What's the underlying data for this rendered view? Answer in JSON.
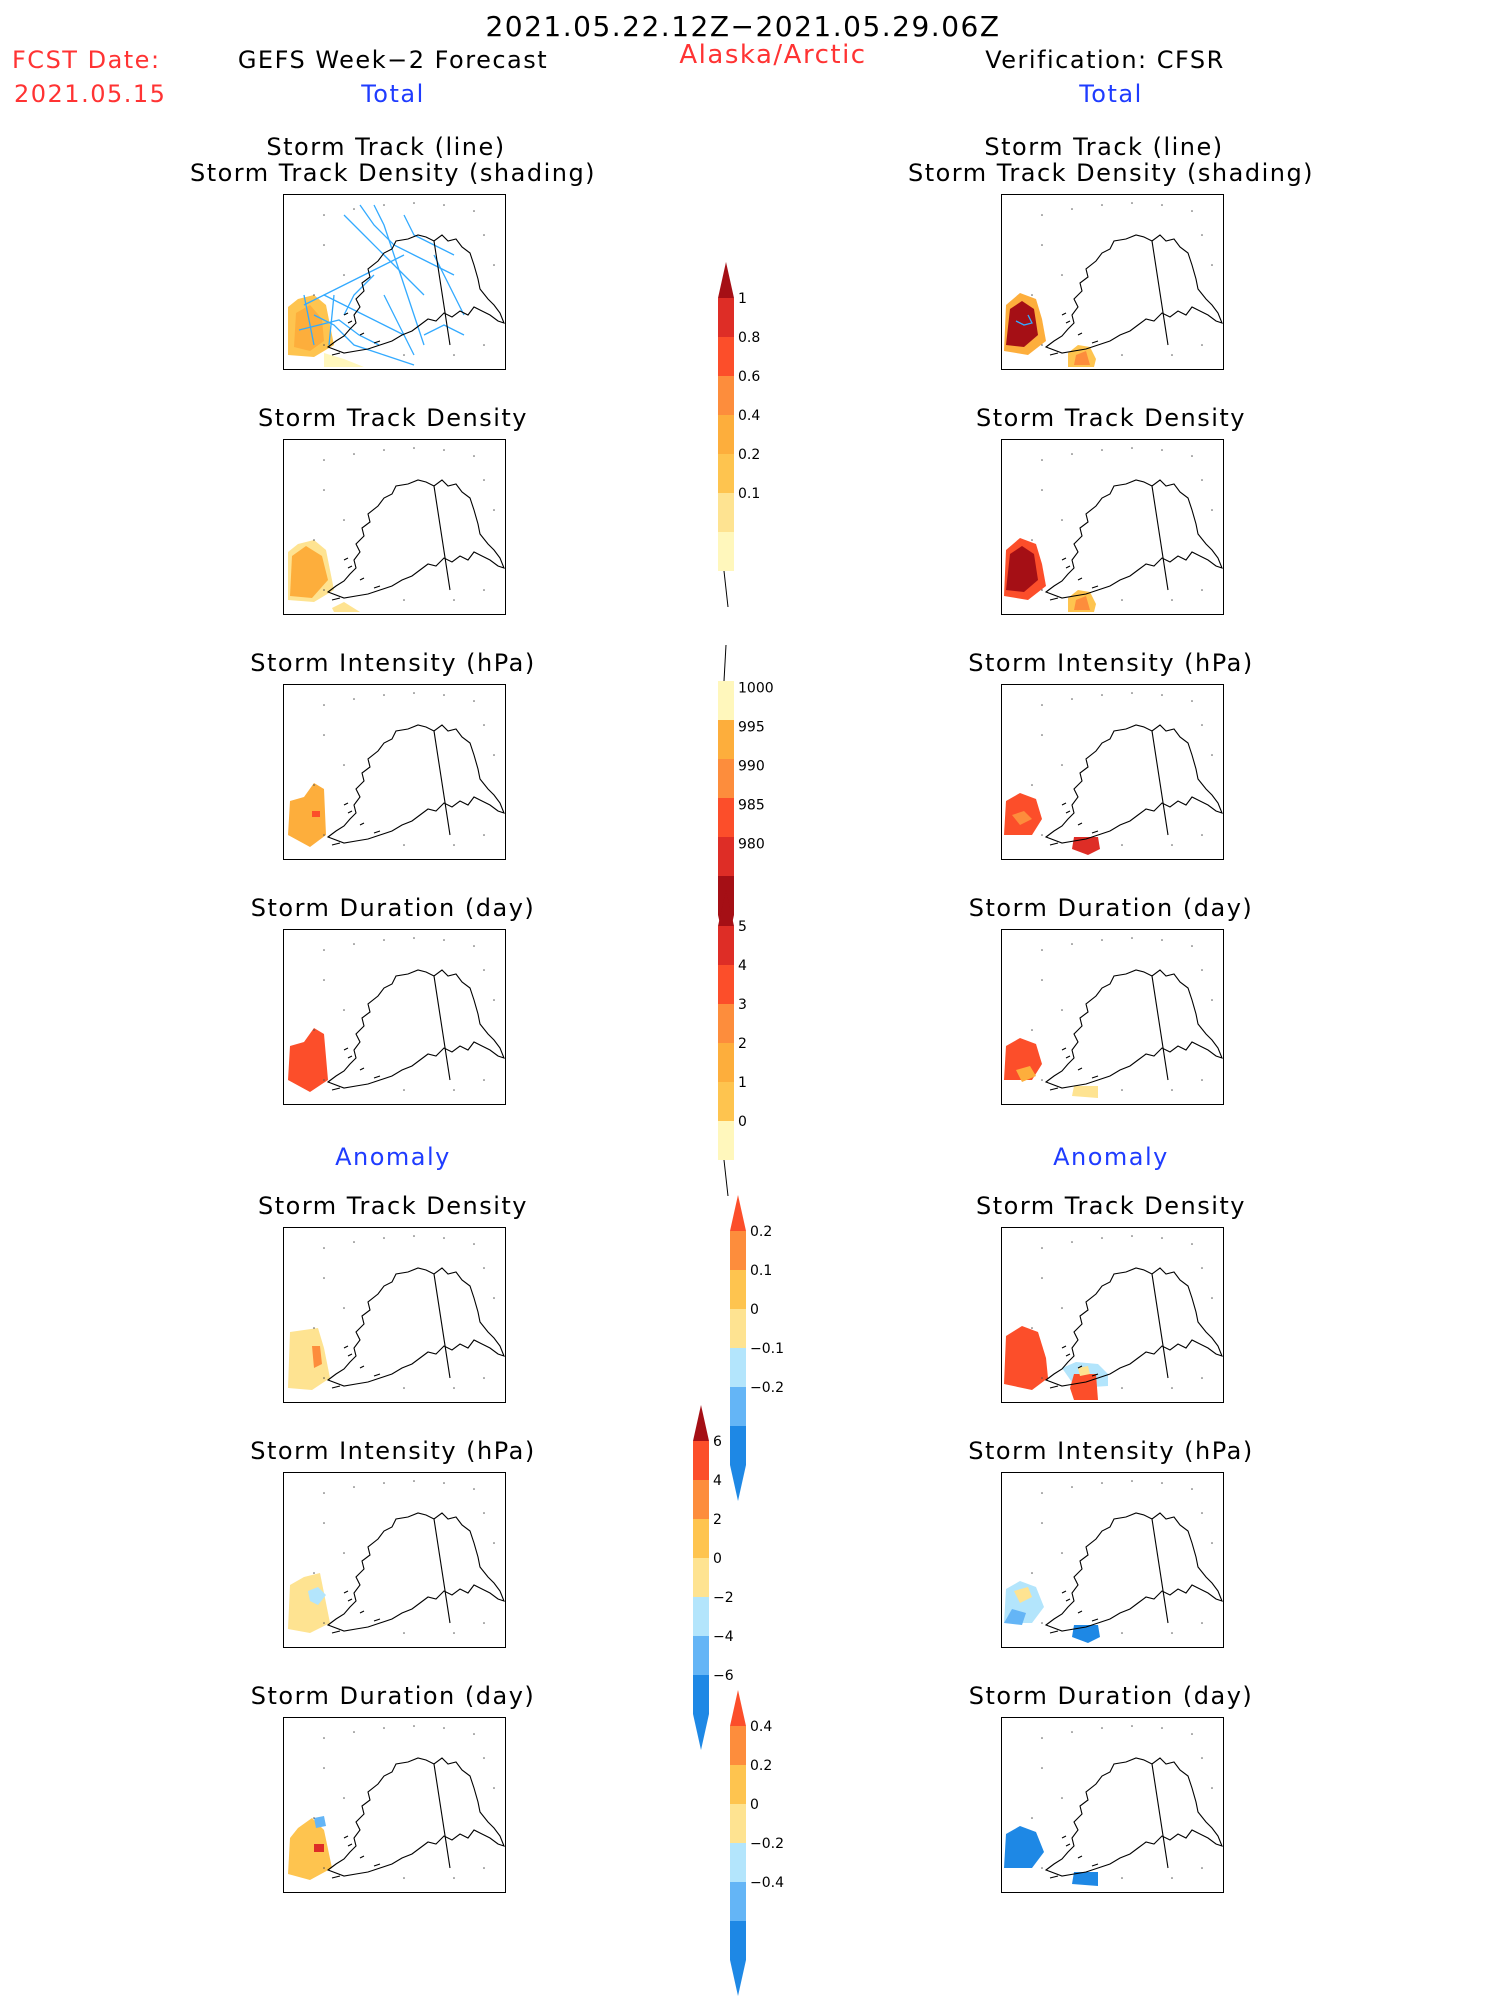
{
  "header": {
    "date_range": "2021.05.22.12Z−2021.05.29.06Z",
    "fcst_label": "FCST Date:",
    "fcst_date": "2021.05.15",
    "left_title": "GEFS Week−2 Forecast",
    "region": "Alaska/Arctic",
    "right_title": "Verification: CFSR",
    "total_left": "Total",
    "total_right": "Total",
    "anomaly_left": "Anomaly",
    "anomaly_right": "Anomaly"
  },
  "panels": {
    "track_line": "Storm Track (line)",
    "track_shading": "Storm Track Density (shading)",
    "density": "Storm Track Density",
    "intensity": "Storm Intensity (hPa)",
    "duration": "Storm Duration (day)"
  },
  "colorbars": {
    "density": [
      "1",
      "0.8",
      "0.6",
      "0.4",
      "0.2",
      "0.1"
    ],
    "intensity": [
      "1000",
      "995",
      "990",
      "985",
      "980"
    ],
    "duration": [
      "5",
      "4",
      "3",
      "2",
      "1",
      "0"
    ],
    "anom_density": [
      "0.2",
      "0.1",
      "0",
      "−0.1",
      "−0.2"
    ],
    "anom_intensity": [
      "6",
      "4",
      "2",
      "0",
      "−2",
      "−4",
      "−6"
    ],
    "anom_duration": [
      "0.4",
      "0.2",
      "0",
      "−0.2",
      "−0.4"
    ]
  },
  "colors": {
    "dark_red": "#a50f15",
    "red": "#de2d26",
    "orange_red": "#fc4e2a",
    "orange": "#fd8d3c",
    "amber": "#fdae3c",
    "light_orange": "#fec44f",
    "yellow": "#fee391",
    "pale_yellow": "#fff7bc",
    "light_blue": "#b3e5fc",
    "sky_blue": "#64b5f6",
    "blue": "#1e88e5",
    "track_blue": "#33aaff",
    "title_red": "#ff3333",
    "title_blue": "#1f3cff"
  }
}
